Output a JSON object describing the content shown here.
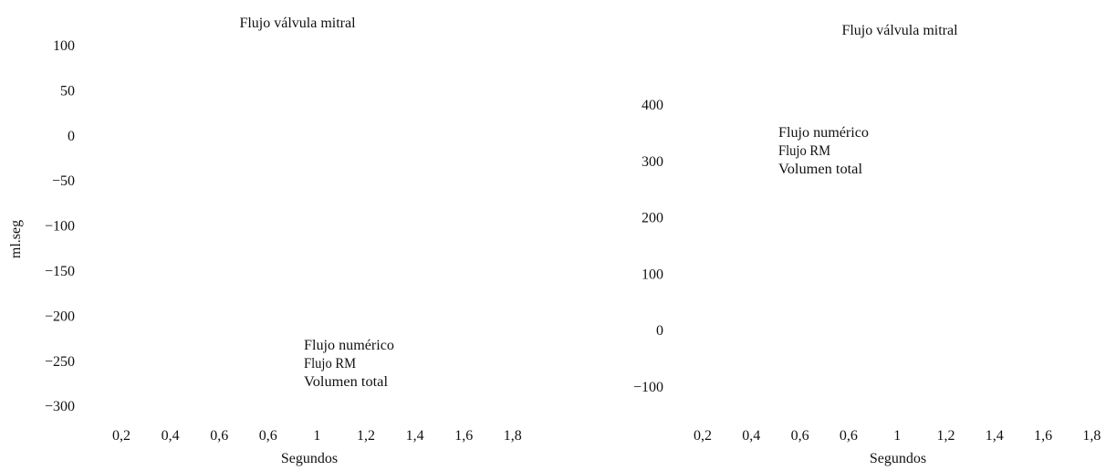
{
  "chart_data": [
    {
      "type": "line",
      "title": "Flujo válvula mitral",
      "xlabel": "Segundos",
      "ylabel": "ml.seg",
      "x_tick_labels": [
        "0,2",
        "0,4",
        "0,6",
        "0,6",
        "1",
        "1,2",
        "1,4",
        "1,6",
        "1,8"
      ],
      "y_tick_labels": [
        "100",
        "50",
        "0",
        "−50",
        "−100",
        "−150",
        "−200",
        "−250",
        "−300"
      ],
      "legend": [
        "Flujo numérico",
        "Flujo RM",
        "Volumen total"
      ],
      "legend_placement": "bottom-center",
      "grid": false,
      "series": []
    },
    {
      "type": "line",
      "title": "Flujo válvula mitral",
      "xlabel": "Segundos",
      "ylabel": "",
      "x_tick_labels": [
        "0,2",
        "0,4",
        "0,6",
        "0,6",
        "1",
        "1,2",
        "1,4",
        "1,6",
        "1,8"
      ],
      "y_tick_labels": [
        "400",
        "300",
        "200",
        "100",
        "0",
        "−100"
      ],
      "legend": [
        "Flujo numérico",
        "Flujo RM",
        "Volumen total"
      ],
      "legend_placement": "top-left",
      "grid": false,
      "series": []
    }
  ]
}
